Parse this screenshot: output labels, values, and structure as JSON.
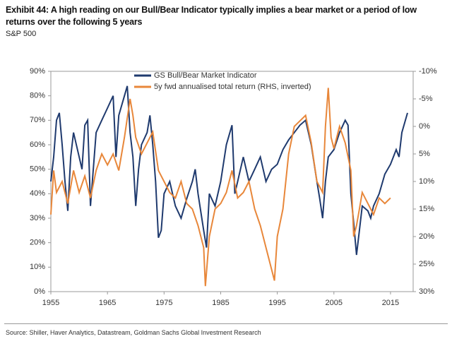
{
  "chart_data": {
    "type": "line",
    "title": "Exhibit 44: A high reading on our Bull/Bear Indicator typically implies a bear market or a period of low returns over the following 5 years",
    "subtitle": "S&P 500",
    "source": "Source: Shiller, Haver Analytics, Datastream, Goldman Sachs Global Investment Research",
    "xlim": [
      1955,
      2019
    ],
    "xticks": [
      1955,
      1965,
      1975,
      1985,
      1995,
      2005,
      2015
    ],
    "ylim": [
      0,
      90
    ],
    "yticks": [
      {
        "value": 0,
        "label": "0%"
      },
      {
        "value": 10,
        "label": "10%"
      },
      {
        "value": 20,
        "label": "20%"
      },
      {
        "value": 30,
        "label": "30%"
      },
      {
        "value": 40,
        "label": "40%"
      },
      {
        "value": 50,
        "label": "50%"
      },
      {
        "value": 60,
        "label": "60%"
      },
      {
        "value": 70,
        "label": "70%"
      },
      {
        "value": 80,
        "label": "80%"
      },
      {
        "value": 90,
        "label": "90%"
      }
    ],
    "y2lim": [
      30,
      -10
    ],
    "y2ticks": [
      {
        "value": -10,
        "label": "-10%"
      },
      {
        "value": -5,
        "label": "-5%"
      },
      {
        "value": 0,
        "label": "0%"
      },
      {
        "value": 5,
        "label": "5%"
      },
      {
        "value": 10,
        "label": "10%"
      },
      {
        "value": 15,
        "label": "15%"
      },
      {
        "value": 20,
        "label": "20%"
      },
      {
        "value": 25,
        "label": "25%"
      },
      {
        "value": 30,
        "label": "30%"
      }
    ],
    "legend": "top",
    "series": [
      {
        "name": "GS Bull/Bear Market Indicator",
        "color": "#1f3a6e",
        "x": [
          1955,
          1955.5,
          1956,
          1956.5,
          1957,
          1957.5,
          1958,
          1958.5,
          1959,
          1960,
          1960.5,
          1961,
          1961.5,
          1962,
          1962.5,
          1963,
          1964,
          1965,
          1966,
          1966.5,
          1967,
          1968,
          1968.5,
          1969,
          1969.5,
          1970,
          1970.5,
          1971,
          1972,
          1972.5,
          1973,
          1973.5,
          1974,
          1974.5,
          1975,
          1976,
          1977,
          1978,
          1979,
          1980,
          1980.5,
          1981,
          1982,
          1982.5,
          1983,
          1984,
          1985,
          1986,
          1987,
          1987.5,
          1988,
          1989,
          1990,
          1991,
          1992,
          1993,
          1994,
          1995,
          1996,
          1997,
          1998,
          1999,
          2000,
          2001,
          2002,
          2002.5,
          2003,
          2003.5,
          2004,
          2005,
          2006,
          2007,
          2007.5,
          2008,
          2008.5,
          2009,
          2009.5,
          2010,
          2011,
          2011.5,
          2012,
          2013,
          2014,
          2015,
          2016,
          2016.5,
          2017,
          2018
        ],
        "values": [
          45,
          55,
          70,
          73,
          60,
          45,
          33,
          55,
          65,
          55,
          50,
          68,
          70,
          35,
          50,
          65,
          70,
          75,
          80,
          55,
          72,
          80,
          84,
          65,
          55,
          35,
          50,
          60,
          65,
          72,
          60,
          45,
          22,
          25,
          40,
          45,
          35,
          30,
          38,
          45,
          50,
          40,
          25,
          18,
          40,
          35,
          45,
          60,
          68,
          40,
          45,
          55,
          45,
          50,
          55,
          45,
          50,
          52,
          58,
          62,
          65,
          68,
          70,
          60,
          45,
          38,
          30,
          45,
          55,
          58,
          65,
          70,
          68,
          40,
          28,
          15,
          25,
          35,
          33,
          30,
          35,
          40,
          48,
          52,
          58,
          55,
          65,
          73
        ]
      },
      {
        "name": "5y fwd annualised total return (RHS, inverted)",
        "color": "#e8873a",
        "axis": "y2",
        "x": [
          1955,
          1955.5,
          1956,
          1957,
          1958,
          1959,
          1960,
          1961,
          1962,
          1963,
          1964,
          1965,
          1966,
          1967,
          1968,
          1969,
          1969.5,
          1970,
          1971,
          1972,
          1973,
          1974,
          1975,
          1976,
          1977,
          1978,
          1979,
          1980,
          1981,
          1982,
          1982.3,
          1983,
          1984,
          1985,
          1986,
          1987,
          1988,
          1989,
          1990,
          1991,
          1992,
          1993,
          1994,
          1994.5,
          1995,
          1996,
          1997,
          1998,
          1999,
          2000,
          2001,
          2002,
          2003,
          2003.5,
          2004,
          2004.5,
          2005,
          2006,
          2007,
          2008,
          2008.5,
          2009,
          2009.5,
          2010,
          2011,
          2012,
          2013,
          2014,
          2015
        ],
        "values": [
          16,
          8,
          12,
          10,
          14,
          8,
          12,
          9,
          13,
          8,
          5,
          7,
          5,
          8,
          2,
          -5,
          -2,
          2,
          5,
          3,
          1,
          8,
          10,
          12,
          13,
          10,
          14,
          15,
          18,
          22,
          29,
          20,
          15,
          14,
          12,
          8,
          13,
          12,
          10,
          15,
          18,
          22,
          26,
          28,
          20,
          15,
          5,
          0,
          -1,
          -2,
          3,
          10,
          12,
          0,
          -7,
          2,
          4,
          0,
          3,
          8,
          20,
          18,
          15,
          12,
          14,
          16,
          13,
          14,
          13
        ]
      }
    ]
  }
}
